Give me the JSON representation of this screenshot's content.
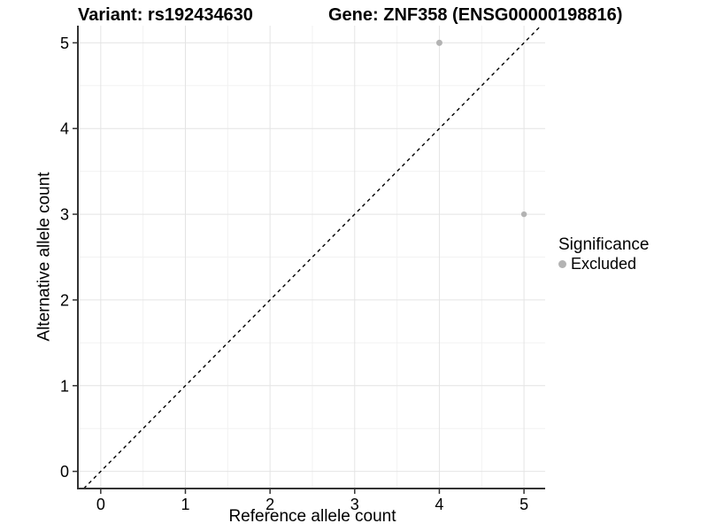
{
  "colors": {
    "background": "#ffffff",
    "text": "#000000",
    "axis": "#333333",
    "grid_major": "#e4e4e4",
    "grid_minor": "#f2f2f2",
    "diagonal": "#000000",
    "point": "#b3b3b3"
  },
  "chart_data": {
    "type": "scatter",
    "title_left": "Variant: rs192434630",
    "title_right": "Gene: ZNF358 (ENSG00000198816)",
    "xlabel": "Reference allele count",
    "ylabel": "Alternative allele count",
    "xlim": [
      -0.27,
      5.25
    ],
    "ylim": [
      -0.2,
      5.2
    ],
    "x_ticks": [
      0,
      1,
      2,
      3,
      4,
      5
    ],
    "y_ticks": [
      0,
      1,
      2,
      3,
      4,
      5
    ],
    "x_minor": [
      0.5,
      1.5,
      2.5,
      3.5,
      4.5
    ],
    "y_minor": [
      0.5,
      1.5,
      2.5,
      3.5,
      4.5
    ],
    "grid": true,
    "series": [
      {
        "name": "Excluded",
        "color": "#b3b3b3",
        "points": [
          {
            "x": 4,
            "y": 5,
            "r": 3.5
          },
          {
            "x": 5,
            "y": 3,
            "r": 3.2
          }
        ]
      }
    ],
    "reference_line": {
      "style": "dashed",
      "slope": 1,
      "intercept": 0
    },
    "legend": {
      "position": "right",
      "title": "Significance",
      "entries": [
        {
          "label": "Excluded",
          "color": "#b3b3b3"
        }
      ]
    }
  }
}
